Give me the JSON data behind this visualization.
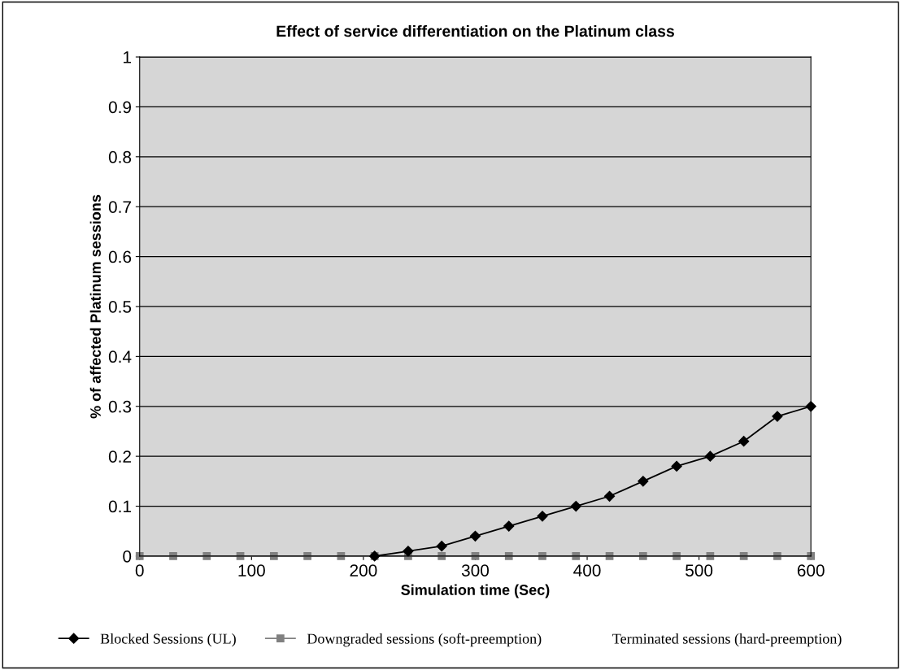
{
  "chart_data": {
    "type": "line",
    "title": "Effect of service differentiation on the Platinum class",
    "xlabel": "Simulation time (Sec)",
    "ylabel": "% of affected Platinum sessions",
    "x": [
      0,
      30,
      60,
      90,
      120,
      150,
      180,
      210,
      240,
      270,
      300,
      330,
      360,
      390,
      420,
      450,
      480,
      510,
      540,
      570,
      600
    ],
    "series": [
      {
        "name": "Blocked Sessions (UL)",
        "color": "#000000",
        "marker": "diamond",
        "values": [
          null,
          null,
          null,
          null,
          null,
          null,
          null,
          0,
          0.01,
          0.02,
          0.04,
          0.06,
          0.08,
          0.1,
          0.12,
          0.15,
          0.18,
          0.2,
          0.23,
          0.28,
          0.3
        ]
      },
      {
        "name": "Downgraded sessions (soft-preemption)",
        "color": "#808080",
        "marker": "square",
        "values": [
          0,
          0,
          0,
          0,
          0,
          0,
          0,
          0,
          0,
          0,
          0,
          0,
          0,
          0,
          0,
          0,
          0,
          0,
          0,
          0,
          0
        ]
      },
      {
        "name": "Terminated sessions (hard-preemption)",
        "marker": "none",
        "values": [
          null,
          null,
          null,
          null,
          null,
          null,
          null,
          null,
          null,
          null,
          null,
          null,
          null,
          null,
          null,
          null,
          null,
          null,
          null,
          null,
          null
        ]
      }
    ],
    "xlim": [
      0,
      600
    ],
    "xticks": [
      0,
      100,
      200,
      300,
      400,
      500,
      600
    ],
    "ylim": [
      0,
      1
    ],
    "yticks": [
      0,
      0.1,
      0.2,
      0.3,
      0.4,
      0.5,
      0.6,
      0.7,
      0.8,
      0.9,
      1
    ],
    "grid": "y",
    "legend": "bottom"
  }
}
